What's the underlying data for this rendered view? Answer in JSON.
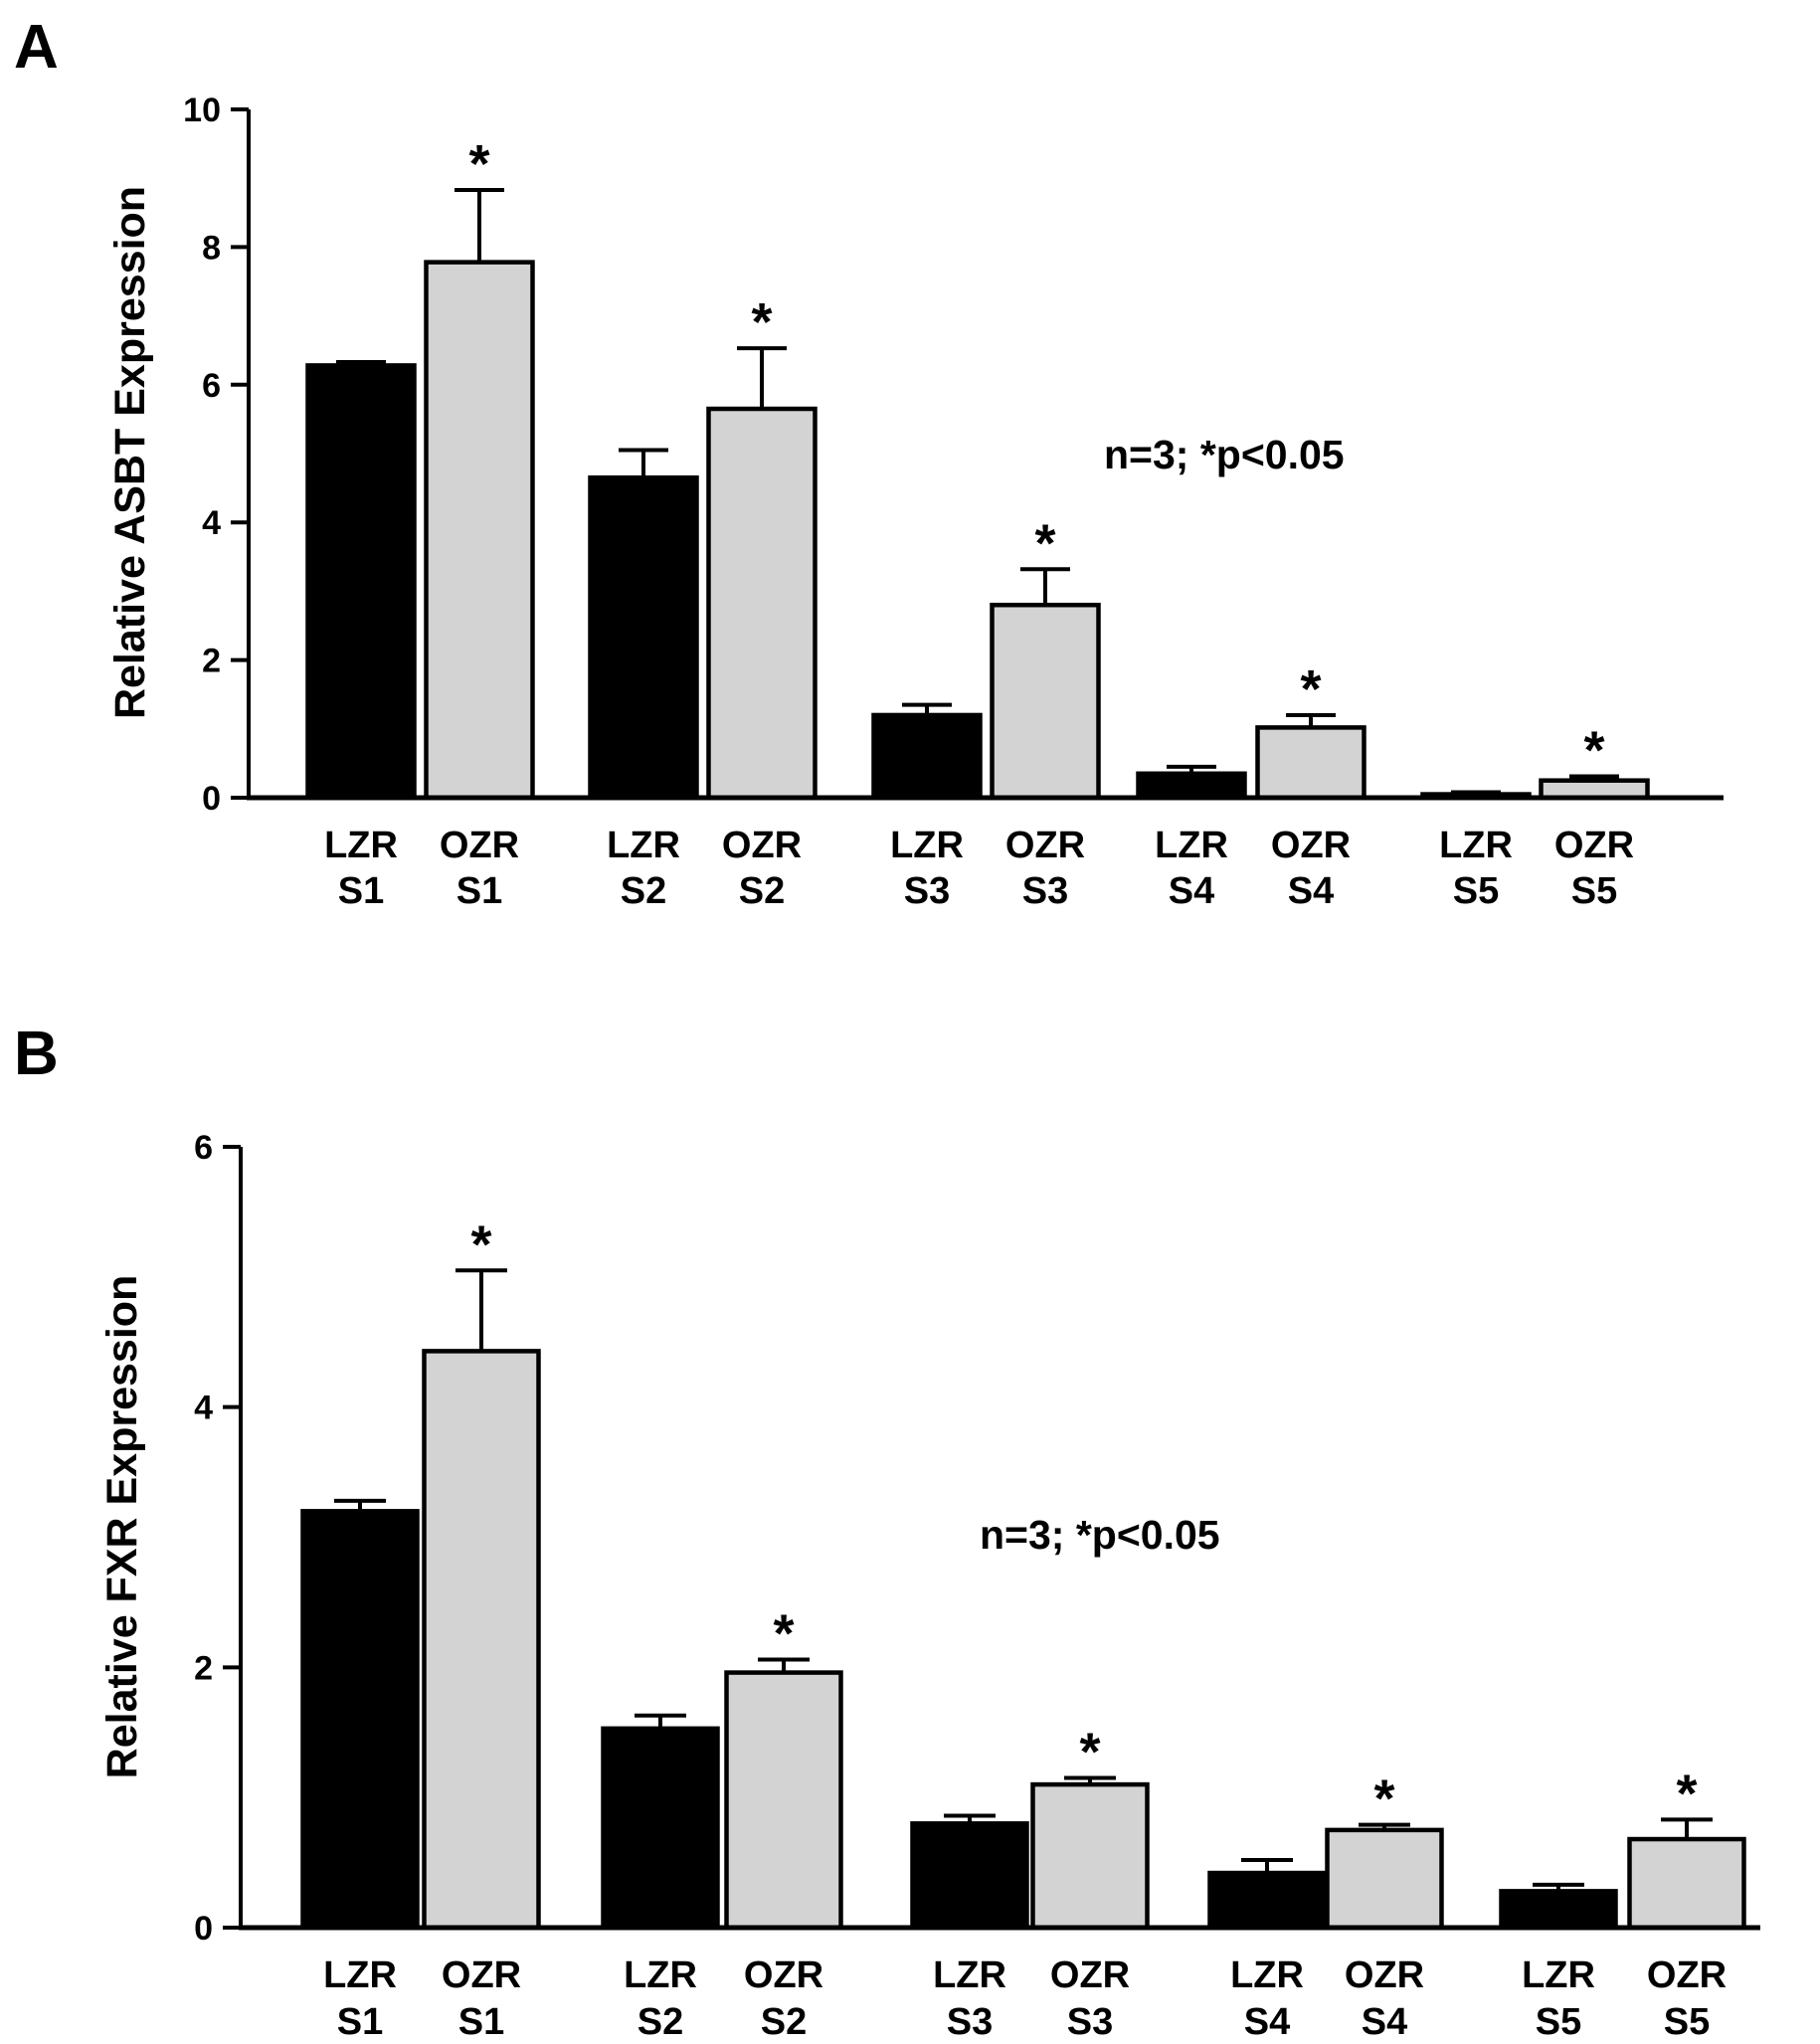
{
  "figure": {
    "background": "#ffffff"
  },
  "chart_data": [
    {
      "type": "bar",
      "panel": "A",
      "ylabel": "Relative ASBT Expression",
      "xlabel": "",
      "ylim": [
        0,
        10
      ],
      "yticks": [
        "0",
        "2",
        "4",
        "6",
        "8",
        "10"
      ],
      "annotation": "n=3; *p<0.05",
      "categories": [
        {
          "line1": "LZR",
          "line2": "S1"
        },
        {
          "line1": "OZR",
          "line2": "S1"
        },
        {
          "line1": "LZR",
          "line2": "S2"
        },
        {
          "line1": "OZR",
          "line2": "S2"
        },
        {
          "line1": "LZR",
          "line2": "S3"
        },
        {
          "line1": "OZR",
          "line2": "S3"
        },
        {
          "line1": "LZR",
          "line2": "S4"
        },
        {
          "line1": "OZR",
          "line2": "S4"
        },
        {
          "line1": "LZR",
          "line2": "S5"
        },
        {
          "line1": "OZR",
          "line2": "S5"
        }
      ],
      "values": [
        6.28,
        7.78,
        4.65,
        5.65,
        1.2,
        2.8,
        0.35,
        1.02,
        0.05,
        0.25
      ],
      "errors": [
        0.05,
        1.05,
        0.4,
        0.88,
        0.15,
        0.52,
        0.1,
        0.18,
        0.03,
        0.06
      ],
      "significance": [
        "",
        "*",
        "",
        "*",
        "",
        "*",
        "",
        "*",
        "",
        "*"
      ],
      "series_colors": {
        "LZR": "#000000",
        "OZR": "#d3d3d3"
      }
    },
    {
      "type": "bar",
      "panel": "B",
      "ylabel": "Relative FXR Expression",
      "xlabel": "",
      "ylim": [
        0,
        6
      ],
      "yticks": [
        "0",
        "2",
        "4",
        "6"
      ],
      "annotation": "n=3; *p<0.05",
      "categories": [
        {
          "line1": "LZR",
          "line2": "S1"
        },
        {
          "line1": "OZR",
          "line2": "S1"
        },
        {
          "line1": "LZR",
          "line2": "S2"
        },
        {
          "line1": "OZR",
          "line2": "S2"
        },
        {
          "line1": "LZR",
          "line2": "S3"
        },
        {
          "line1": "OZR",
          "line2": "S3"
        },
        {
          "line1": "LZR",
          "line2": "S4"
        },
        {
          "line1": "OZR",
          "line2": "S4"
        },
        {
          "line1": "LZR",
          "line2": "S5"
        },
        {
          "line1": "OZR",
          "line2": "S5"
        }
      ],
      "values": [
        3.2,
        4.43,
        1.53,
        1.96,
        0.8,
        1.1,
        0.42,
        0.75,
        0.28,
        0.68
      ],
      "errors": [
        0.08,
        0.62,
        0.1,
        0.1,
        0.06,
        0.05,
        0.1,
        0.04,
        0.05,
        0.15
      ],
      "significance": [
        "",
        "*",
        "",
        "*",
        "",
        "*",
        "",
        "*",
        "",
        "*"
      ],
      "series_colors": {
        "LZR": "#000000",
        "OZR": "#d3d3d3"
      }
    }
  ]
}
